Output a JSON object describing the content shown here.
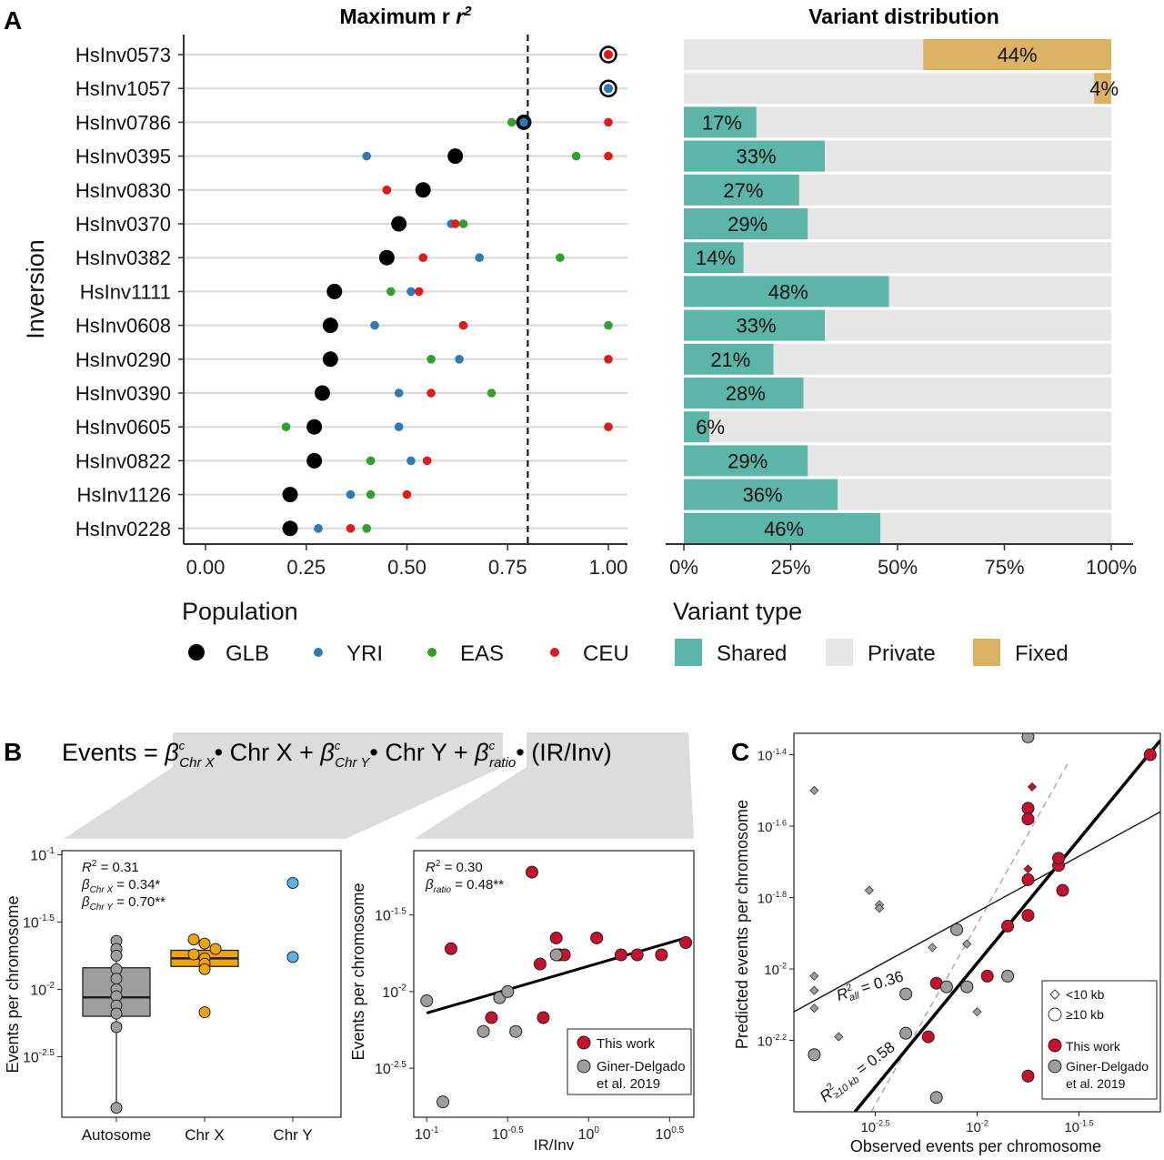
{
  "chart_data": [
    {
      "panel": "A",
      "type": "scatter",
      "title": "Maximum r",
      "title_sup": "2",
      "ylabel": "Inversion",
      "xlim": [
        -0.05,
        1.05
      ],
      "xticks": [
        "0.00",
        "0.25",
        "0.50",
        "0.75",
        "1.00"
      ],
      "xtick_values": [
        0,
        0.25,
        0.5,
        0.75,
        1.0
      ],
      "reference_line": 0.8,
      "categories": [
        "HsInv0573",
        "HsInv1057",
        "HsInv0786",
        "HsInv0395",
        "HsInv0830",
        "HsInv0370",
        "HsInv0382",
        "HsInv1111",
        "HsInv0608",
        "HsInv0290",
        "HsInv0390",
        "HsInv0605",
        "HsInv0822",
        "HsInv1126",
        "HsInv0228"
      ],
      "series": [
        {
          "name": "GLB",
          "color": "#000000",
          "values": [
            1.0,
            1.0,
            0.79,
            0.62,
            0.54,
            0.48,
            0.45,
            0.32,
            0.31,
            0.31,
            0.29,
            0.27,
            0.27,
            0.21,
            0.21
          ]
        },
        {
          "name": "YRI",
          "color": "#2c7bb6",
          "values": [
            1.0,
            1.0,
            0.79,
            0.4,
            0.45,
            0.61,
            0.68,
            0.51,
            0.42,
            0.63,
            0.48,
            0.48,
            0.51,
            0.36,
            0.28
          ]
        },
        {
          "name": "EAS",
          "color": "#33a02c",
          "values": [
            1.0,
            1.0,
            0.76,
            0.92,
            0.45,
            0.64,
            0.88,
            0.46,
            1.0,
            0.56,
            0.71,
            0.2,
            0.41,
            0.41,
            0.4
          ]
        },
        {
          "name": "CEU",
          "color": "#e31a1c",
          "values": [
            1.0,
            1.0,
            1.0,
            1.0,
            0.45,
            0.62,
            0.54,
            0.53,
            0.64,
            1.0,
            0.56,
            1.0,
            0.55,
            0.5,
            0.36
          ]
        }
      ],
      "legend_title": "Population"
    },
    {
      "panel": "A",
      "type": "bar",
      "title": "Variant distribution",
      "xticks": [
        "0%",
        "25%",
        "50%",
        "75%",
        "100%"
      ],
      "xtick_values": [
        0,
        25,
        50,
        75,
        100
      ],
      "categories": [
        "HsInv0573",
        "HsInv1057",
        "HsInv0786",
        "HsInv0395",
        "HsInv0830",
        "HsInv0370",
        "HsInv0382",
        "HsInv1111",
        "HsInv0608",
        "HsInv0290",
        "HsInv0390",
        "HsInv0605",
        "HsInv0822",
        "HsInv1126",
        "HsInv0228"
      ],
      "series": [
        {
          "name": "Shared",
          "color": "#5bb5a9",
          "values": [
            0,
            0,
            17,
            33,
            27,
            29,
            14,
            48,
            33,
            21,
            28,
            6,
            29,
            36,
            46
          ]
        },
        {
          "name": "Private",
          "color": "#e6e6e6",
          "values": [
            56,
            96,
            83,
            67,
            73,
            71,
            86,
            52,
            67,
            79,
            72,
            94,
            71,
            64,
            54
          ]
        },
        {
          "name": "Fixed",
          "color": "#dbb162",
          "values": [
            44,
            4,
            0,
            0,
            0,
            0,
            0,
            0,
            0,
            0,
            0,
            0,
            0,
            0,
            0
          ]
        }
      ],
      "data_labels": [
        "44%",
        "4%",
        "17%",
        "33%",
        "27%",
        "29%",
        "14%",
        "48%",
        "33%",
        "21%",
        "28%",
        "6%",
        "29%",
        "36%",
        "46%"
      ],
      "legend_title": "Variant type"
    },
    {
      "panel": "B",
      "type": "box",
      "equation": {
        "lhs": "Events =",
        "beta": "β",
        "sup": "c",
        "term1_sub": "Chr X",
        "term1_var": "Chr X",
        "plus": "+",
        "term2_sub": "Chr Y",
        "term2_var": "Chr Y",
        "term3_sub": "ratio",
        "term3_var": "(IR/Inv)",
        "dot": "•"
      },
      "ylabel": "Events per chromosome",
      "ytick_exponents": [
        -1,
        -1.5,
        -2,
        -2.5
      ],
      "ytick_labels": [
        "-1",
        "-1.5",
        "-2",
        "-2.5"
      ],
      "ytick_base": "10",
      "ylim_log10": [
        -2.95,
        -0.97
      ],
      "categories": [
        "Autosome",
        "Chr X",
        "Chr Y"
      ],
      "colors": [
        "#9e9e9e",
        "#f0a30a",
        "#56b4e9"
      ],
      "points_log10": [
        [
          -1.64,
          -1.7,
          -1.75,
          -1.85,
          -1.92,
          -2.0,
          -2.05,
          -2.12,
          -2.18,
          -2.28,
          -2.88
        ],
        [
          -1.63,
          -1.66,
          -1.7,
          -1.74,
          -1.77,
          -1.81,
          -1.85,
          -2.17
        ],
        [
          -1.21,
          -1.76
        ]
      ],
      "box_log10": [
        {
          "q1": -2.2,
          "median": -2.06,
          "q3": -1.84,
          "low": -2.88,
          "high": -1.64
        },
        {
          "q1": -1.83,
          "median": -1.77,
          "q3": -1.71,
          "low": -1.83,
          "high": -1.63
        },
        null
      ],
      "annotation": {
        "r2_prefix": "R",
        "r2_sup": "2",
        "r2_value": " = 0.31",
        "b1_beta": "β",
        "b1_sub": "Chr X",
        "b1_value": " = 0.34*",
        "b2_beta": "β",
        "b2_sub": "Chr Y",
        "b2_value": " = 0.70**"
      }
    },
    {
      "panel": "B",
      "type": "scatter",
      "xlabel": "IR/Inv",
      "ylabel": "Events per chromosome",
      "xtick_exponents": [
        -1,
        -0.5,
        0,
        0.5
      ],
      "xtick_labels": [
        "-1",
        "-0.5",
        "0",
        "0.5"
      ],
      "ytick_exponents": [
        -1.5,
        -2,
        -2.5
      ],
      "ytick_labels": [
        "-1.5",
        "-2",
        "-2.5"
      ],
      "tick_base": "10",
      "xlim_log10": [
        -1.08,
        0.65
      ],
      "ylim_log10": [
        -2.82,
        -1.08
      ],
      "series": [
        {
          "name": "This work",
          "color": "#c8102e",
          "x_log10": [
            -0.85,
            -0.6,
            -0.35,
            -0.3,
            -0.28,
            -0.2,
            -0.18,
            -0.15,
            0.05,
            0.2,
            0.3,
            0.45,
            0.6
          ],
          "y_log10": [
            -1.72,
            -2.17,
            -1.22,
            -1.82,
            -2.17,
            -1.65,
            -1.76,
            -1.76,
            -1.65,
            -1.76,
            -1.76,
            -1.76,
            -1.68
          ]
        },
        {
          "name": "Giner-Delgado et al. 2019",
          "color": "#9e9e9e",
          "x_log10": [
            -1.0,
            -0.9,
            -0.65,
            -0.55,
            -0.5,
            -0.45,
            -0.2
          ],
          "y_log10": [
            -2.06,
            -2.72,
            -2.26,
            -2.04,
            -2.0,
            -2.26,
            -1.76
          ]
        }
      ],
      "fit_line_log10": [
        [
          -1.0,
          -2.14
        ],
        [
          0.6,
          -1.65
        ]
      ],
      "annotation": {
        "r2_prefix": "R",
        "r2_sup": "2",
        "r2_value": " = 0.30",
        "b_beta": "β",
        "b_sub": "ratio",
        "b_value": " = 0.48**"
      }
    },
    {
      "panel": "C",
      "type": "scatter",
      "xlabel": "Observed events per chromosome",
      "ylabel": "Predicted events per chromosome",
      "tick_base": "10",
      "xtick_exponents": [
        -2.5,
        -2,
        -1.5
      ],
      "xtick_labels": [
        "-2.5",
        "-2",
        "-1.5"
      ],
      "ytick_exponents": [
        -1.4,
        -1.6,
        -1.8,
        -2,
        -2.2
      ],
      "ytick_labels": [
        "-1.4",
        "-1.6",
        "-1.8",
        "-2",
        "-2.2"
      ],
      "xlim_log10": [
        -2.9,
        -1.1
      ],
      "ylim_log10": [
        -2.4,
        -1.34
      ],
      "series": [
        {
          "name": "<10 kb",
          "shape": "diamond",
          "color": "#9e9e9e",
          "x_log10": [
            -2.8,
            -2.8,
            -2.8,
            -2.8,
            -2.68,
            -2.53,
            -2.48,
            -2.48,
            -2.22,
            -2.05,
            -2.0
          ],
          "y_log10": [
            -1.5,
            -2.02,
            -2.06,
            -2.11,
            -2.19,
            -1.78,
            -1.82,
            -1.83,
            -1.94,
            -1.93,
            -2.12
          ]
        },
        {
          "name": "<10 kb This work",
          "shape": "diamond",
          "color": "#c8102e",
          "x_log10": [
            -1.73,
            -1.75
          ],
          "y_log10": [
            -1.49,
            -1.72
          ]
        },
        {
          "name": "This work",
          "color": "#c8102e",
          "x_log10": [
            -1.15,
            -1.75,
            -1.75,
            -1.6,
            -1.6,
            -1.58,
            -1.75,
            -1.85,
            -1.75,
            -2.2,
            -2.24,
            -1.95,
            -1.75
          ],
          "y_log10": [
            -1.4,
            -1.55,
            -1.58,
            -1.71,
            -1.69,
            -1.78,
            -1.75,
            -1.88,
            -1.85,
            -2.04,
            -2.19,
            -2.02,
            -2.3
          ]
        },
        {
          "name": "Giner-Delgado et al. 2019",
          "color": "#9e9e9e",
          "x_log10": [
            -1.75,
            -2.1,
            -2.15,
            -2.05,
            -2.35,
            -2.35,
            -1.85,
            -2.8,
            -2.2
          ],
          "y_log10": [
            -1.35,
            -1.89,
            -2.05,
            -2.05,
            -2.07,
            -2.18,
            -2.02,
            -2.24,
            -2.36
          ]
        }
      ],
      "fit_lines_log10": [
        {
          "label": "all",
          "points": [
            [
              -2.9,
              -2.12
            ],
            [
              -1.1,
              -1.56
            ]
          ]
        },
        {
          "label": "≥10 kb",
          "points": [
            [
              -2.6,
              -2.4
            ],
            [
              -1.1,
              -1.36
            ]
          ]
        }
      ],
      "identity_line_log10": [
        [
          -2.52,
          -2.4
        ],
        [
          -1.55,
          -1.42
        ]
      ],
      "r2_all": {
        "prefix": "R",
        "sup": "2",
        "sub": "all",
        "value": " = 0.36"
      },
      "r2_big": {
        "prefix": "R",
        "sup": "2",
        "sub": "≥10 kb",
        "value": " = 0.58"
      },
      "legend": [
        "<10 kb",
        "≥10 kb",
        "This work",
        "Giner-Delgado",
        "et al. 2019"
      ]
    }
  ],
  "panel_labels": [
    "A",
    "B",
    "C"
  ],
  "legend_B": [
    "This work",
    "Giner-Delgado",
    "et al. 2019"
  ],
  "legend_A": {
    "population": [
      "GLB",
      "YRI",
      "EAS",
      "CEU"
    ],
    "variant": [
      "Shared",
      "Private",
      "Fixed"
    ]
  }
}
